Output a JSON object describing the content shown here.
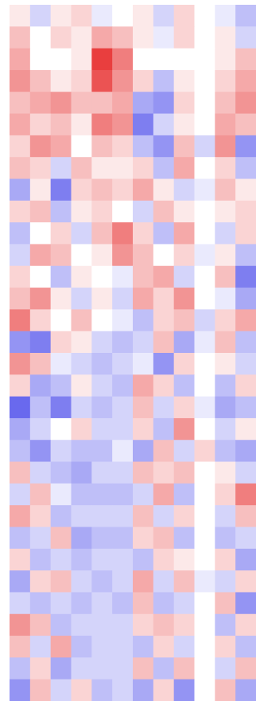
{
  "chart_data": {
    "type": "heatmap",
    "colormap": "bwr",
    "zlim": [
      -1,
      1
    ],
    "z": [
      [
        0.1,
        -0.2,
        0.1,
        0.2,
        -0.1,
        0.0,
        0.1,
        -0.2,
        0.2,
        0.0,
        -0.1,
        -0.3
      ],
      [
        0.3,
        0.0,
        0.2,
        0.1,
        0.4,
        0.3,
        0.1,
        -0.1,
        0.2,
        0.0,
        0.1,
        -0.2
      ],
      [
        0.4,
        0.0,
        0.0,
        0.1,
        0.9,
        0.6,
        0.0,
        0.0,
        0.0,
        0.0,
        0.1,
        0.3
      ],
      [
        0.5,
        0.3,
        0.1,
        0.2,
        0.8,
        0.5,
        0.2,
        -0.3,
        0.1,
        0.0,
        0.2,
        0.4
      ],
      [
        0.3,
        0.4,
        0.5,
        0.3,
        0.3,
        0.4,
        -0.4,
        -0.5,
        0.2,
        0.0,
        0.3,
        0.5
      ],
      [
        0.4,
        0.2,
        0.3,
        0.1,
        0.6,
        0.5,
        -0.6,
        -0.2,
        0.1,
        0.0,
        0.4,
        0.3
      ],
      [
        0.2,
        0.5,
        0.4,
        0.0,
        0.3,
        0.2,
        -0.3,
        -0.5,
        0.3,
        -0.2,
        0.5,
        -0.5
      ],
      [
        0.3,
        0.2,
        -0.2,
        0.3,
        0.1,
        0.1,
        0.2,
        -0.3,
        0.4,
        0.0,
        0.2,
        -0.3
      ],
      [
        -0.4,
        0.1,
        -0.6,
        0.2,
        0.3,
        0.2,
        0.4,
        0.1,
        -0.2,
        -0.1,
        0.3,
        0.1
      ],
      [
        0.2,
        0.3,
        -0.3,
        0.1,
        0.2,
        0.0,
        -0.2,
        0.3,
        0.1,
        0.0,
        0.1,
        0.2
      ],
      [
        -0.3,
        0.0,
        0.2,
        -0.2,
        0.3,
        0.6,
        0.2,
        -0.3,
        0.4,
        0.0,
        -0.2,
        0.2
      ],
      [
        -0.2,
        0.4,
        0.3,
        0.0,
        0.1,
        0.5,
        0.3,
        0.0,
        0.2,
        -0.1,
        0.1,
        -0.3
      ],
      [
        0.2,
        0.0,
        -0.3,
        0.1,
        0.0,
        -0.1,
        0.3,
        0.4,
        -0.2,
        0.0,
        0.3,
        -0.6
      ],
      [
        0.3,
        0.5,
        0.1,
        -0.2,
        0.1,
        -0.2,
        0.4,
        0.2,
        0.5,
        0.0,
        -0.1,
        -0.4
      ],
      [
        0.6,
        0.2,
        0.0,
        0.3,
        0.0,
        -0.1,
        -0.3,
        0.2,
        0.3,
        -0.2,
        0.2,
        0.4
      ],
      [
        -0.5,
        -0.6,
        0.2,
        0.1,
        -0.2,
        -0.3,
        -0.2,
        0.3,
        -0.4,
        -0.1,
        0.3,
        -0.3
      ],
      [
        0.5,
        0.3,
        -0.1,
        -0.2,
        -0.3,
        -0.2,
        -0.1,
        -0.5,
        0.2,
        0.0,
        0.1,
        -0.2
      ],
      [
        0.2,
        -0.4,
        -0.3,
        0.1,
        -0.2,
        -0.3,
        0.4,
        0.2,
        -0.3,
        0.0,
        -0.3,
        0.2
      ],
      [
        -0.7,
        -0.3,
        -0.6,
        -0.2,
        -0.3,
        -0.2,
        0.3,
        -0.2,
        0.2,
        -0.1,
        -0.4,
        -0.3
      ],
      [
        -0.4,
        -0.2,
        0.0,
        0.2,
        -0.2,
        -0.2,
        0.2,
        -0.3,
        0.5,
        0.0,
        -0.2,
        0.1
      ],
      [
        -0.3,
        -0.5,
        -0.2,
        -0.3,
        -0.3,
        -0.1,
        -0.4,
        0.3,
        -0.2,
        0.2,
        -0.3,
        -0.4
      ],
      [
        0.3,
        -0.2,
        -0.3,
        -0.4,
        -0.2,
        -0.2,
        0.3,
        0.2,
        0.3,
        0.0,
        0.1,
        -0.2
      ],
      [
        -0.2,
        0.3,
        -0.1,
        -0.3,
        -0.3,
        -0.3,
        -0.2,
        0.4,
        -0.3,
        0.0,
        0.2,
        0.6
      ],
      [
        0.4,
        0.2,
        -0.3,
        -0.2,
        -0.2,
        -0.2,
        0.3,
        -0.2,
        0.2,
        0.0,
        -0.2,
        0.3
      ],
      [
        -0.3,
        -0.2,
        0.3,
        -0.4,
        -0.3,
        -0.3,
        0.2,
        0.3,
        -0.3,
        0.0,
        -0.3,
        -0.2
      ],
      [
        0.2,
        -0.3,
        -0.2,
        -0.3,
        -0.2,
        -0.2,
        -0.3,
        0.2,
        0.1,
        0.0,
        0.2,
        -0.4
      ],
      [
        -0.4,
        0.2,
        0.3,
        -0.2,
        -0.3,
        -0.2,
        0.4,
        -0.2,
        0.3,
        -0.1,
        -0.2,
        0.2
      ],
      [
        -0.2,
        -0.3,
        -0.2,
        -0.3,
        -0.2,
        -0.3,
        0.3,
        -0.3,
        -0.2,
        0.0,
        0.3,
        -0.5
      ],
      [
        0.5,
        0.3,
        -0.3,
        -0.2,
        -0.2,
        -0.2,
        0.2,
        0.3,
        0.2,
        0.0,
        -0.3,
        0.2
      ],
      [
        0.3,
        -0.2,
        0.4,
        -0.3,
        -0.2,
        -0.2,
        -0.3,
        0.2,
        -0.2,
        0.0,
        0.2,
        -0.3
      ],
      [
        -0.3,
        0.2,
        -0.4,
        -0.2,
        -0.2,
        -0.2,
        0.3,
        -0.3,
        0.3,
        0.0,
        -0.2,
        0.3
      ],
      [
        -0.5,
        0.3,
        -0.2,
        0.2,
        -0.3,
        -0.2,
        -0.4,
        0.2,
        -0.5,
        0.0,
        0.3,
        -0.4
      ]
    ]
  }
}
